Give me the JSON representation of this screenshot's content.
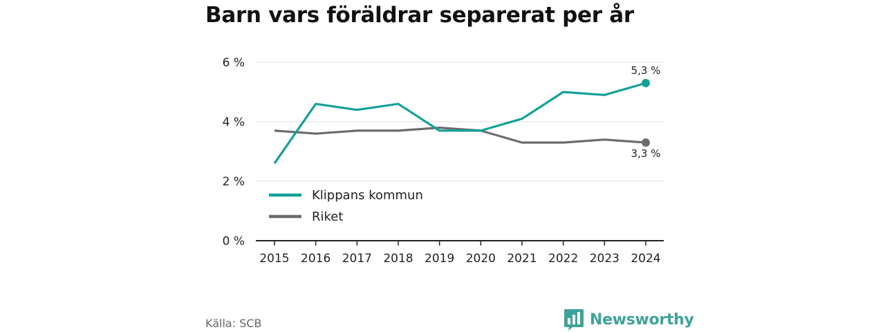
{
  "chart_data": {
    "type": "line",
    "title": "Barn vars föräldrar separerat per år",
    "xlabel": "",
    "ylabel": "",
    "x": [
      "2015",
      "2016",
      "2017",
      "2018",
      "2019",
      "2020",
      "2021",
      "2022",
      "2023",
      "2024"
    ],
    "ylim": [
      0,
      6
    ],
    "y_ticks": [
      0,
      2,
      4,
      6
    ],
    "y_tick_labels": [
      "0 %",
      "2 %",
      "4 %",
      "6 %"
    ],
    "grid": true,
    "legend_position": "bottom-left",
    "series": [
      {
        "name": "Klippans kommun",
        "color": "#12a198",
        "values": [
          2.6,
          4.6,
          4.4,
          4.6,
          3.7,
          3.7,
          4.1,
          5.0,
          4.9,
          5.3
        ],
        "end_label": "5,3 %"
      },
      {
        "name": "Riket",
        "color": "#6d6b70",
        "values": [
          3.7,
          3.6,
          3.7,
          3.7,
          3.8,
          3.7,
          3.3,
          3.3,
          3.4,
          3.3
        ],
        "end_label": "3,3 %"
      }
    ]
  },
  "footer": {
    "source": "Källa: SCB",
    "brand": "Newsworthy",
    "brand_icon": "bar-chart-speech-icon",
    "brand_color": "#3fa39a"
  }
}
